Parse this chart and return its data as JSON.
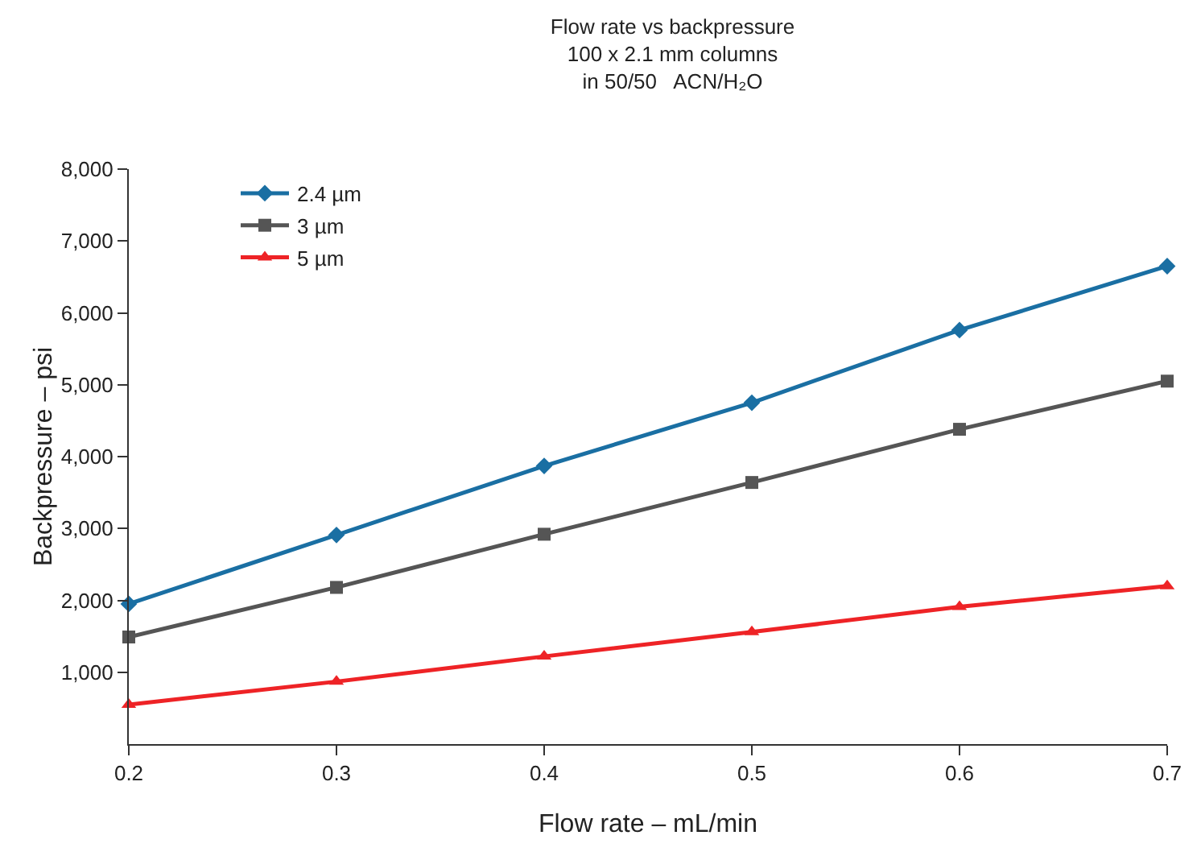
{
  "chart_data": {
    "type": "line",
    "title": "Flow rate vs backpressure",
    "subtitle": "100 x 2.1 mm columns\nin 50/50   ACN/H₂O",
    "xlabel": "Flow rate – mL/min",
    "ylabel": "Backpressure – psi",
    "x": [
      0.2,
      0.3,
      0.4,
      0.5,
      0.6,
      0.7
    ],
    "series": [
      {
        "name": "2.4 µm",
        "color": "#1a6fa3",
        "marker": "diamond",
        "values": [
          1950,
          2910,
          3870,
          4750,
          5760,
          6650
        ]
      },
      {
        "name": "3 µm",
        "color": "#555555",
        "marker": "square",
        "values": [
          1490,
          2180,
          2920,
          3640,
          4380,
          5050
        ]
      },
      {
        "name": "5 µm",
        "color": "#ee2326",
        "marker": "triangle",
        "values": [
          550,
          870,
          1220,
          1560,
          1910,
          2200
        ]
      }
    ],
    "xlim": [
      0.2,
      0.7
    ],
    "xticks": [
      0.2,
      0.3,
      0.4,
      0.5,
      0.6,
      0.7
    ],
    "ylim": [
      0,
      8000
    ],
    "yticks": [
      {
        "value": 1000,
        "label": "1,000"
      },
      {
        "value": 2000,
        "label": "2,000"
      },
      {
        "value": 3000,
        "label": "3,000"
      },
      {
        "value": 4000,
        "label": "4,000"
      },
      {
        "value": 5000,
        "label": "5,000"
      },
      {
        "value": 6000,
        "label": "6,000"
      },
      {
        "value": 7000,
        "label": "7,000"
      },
      {
        "value": 8000,
        "label": "8,000"
      }
    ],
    "grid": false,
    "legend": "top left",
    "line_style": "solid"
  }
}
